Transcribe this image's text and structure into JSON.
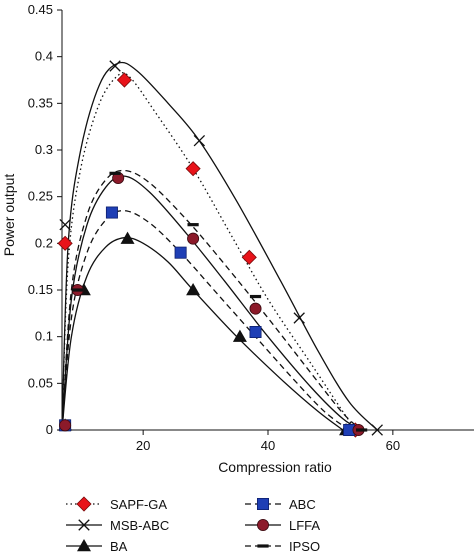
{
  "chart_data": {
    "type": "line",
    "xlabel": "Compression ratio",
    "ylabel": "Power output",
    "xlim": [
      7,
      73
    ],
    "ylim": [
      0,
      0.45
    ],
    "x_ticks": [
      20,
      40,
      60
    ],
    "y_ticks": [
      0,
      0.05,
      0.1,
      0.15,
      0.2,
      0.25,
      0.3,
      0.35,
      0.4,
      0.45
    ],
    "x_tick_labels": [
      "20",
      "40",
      "60"
    ],
    "y_tick_labels": [
      "0",
      "0.05",
      "0.1",
      "0.15",
      "0.2",
      "0.25",
      "0.3",
      "0.35",
      "0.4",
      "0.45"
    ],
    "grid": false,
    "legend_position": "bottom",
    "series": [
      {
        "name": "SAPF-GA",
        "marker": "diamond",
        "color": "#e8131a",
        "line_style": "dotted",
        "points": [
          [
            7.5,
            0.2
          ],
          [
            17,
            0.375
          ],
          [
            28,
            0.28
          ],
          [
            37,
            0.185
          ],
          [
            54,
            0.0
          ]
        ],
        "curve": [
          [
            7,
            0.0
          ],
          [
            8,
            0.18
          ],
          [
            10,
            0.28
          ],
          [
            13,
            0.35
          ],
          [
            16,
            0.38
          ],
          [
            18,
            0.377
          ],
          [
            22,
            0.34
          ],
          [
            28,
            0.28
          ],
          [
            34,
            0.21
          ],
          [
            40,
            0.14
          ],
          [
            47,
            0.07
          ],
          [
            53,
            0.01
          ],
          [
            54.5,
            0.0
          ]
        ]
      },
      {
        "name": "MSB-ABC",
        "marker": "x",
        "color": "#111111",
        "line_style": "solid",
        "points": [
          [
            7.5,
            0.22
          ],
          [
            15.5,
            0.39
          ],
          [
            29,
            0.31
          ],
          [
            45,
            0.12
          ],
          [
            57.5,
            0.0
          ]
        ],
        "curve": [
          [
            7,
            0.0
          ],
          [
            8,
            0.2
          ],
          [
            10,
            0.3
          ],
          [
            13,
            0.37
          ],
          [
            16,
            0.393
          ],
          [
            19,
            0.385
          ],
          [
            24,
            0.35
          ],
          [
            29,
            0.31
          ],
          [
            35,
            0.245
          ],
          [
            42,
            0.16
          ],
          [
            48,
            0.085
          ],
          [
            53,
            0.03
          ],
          [
            57.5,
            0.0
          ]
        ]
      },
      {
        "name": "BA",
        "marker": "triangle",
        "color": "#111111",
        "line_style": "solid",
        "points": [
          [
            7.5,
            0.005
          ],
          [
            10.5,
            0.15
          ],
          [
            17.5,
            0.205
          ],
          [
            28,
            0.15
          ],
          [
            35.5,
            0.1
          ],
          [
            52.5,
            0.0
          ]
        ],
        "curve": [
          [
            7,
            0.0
          ],
          [
            8.5,
            0.1
          ],
          [
            11,
            0.165
          ],
          [
            14,
            0.196
          ],
          [
            17,
            0.206
          ],
          [
            20,
            0.2
          ],
          [
            24,
            0.18
          ],
          [
            28,
            0.15
          ],
          [
            35,
            0.1
          ],
          [
            42,
            0.055
          ],
          [
            48,
            0.02
          ],
          [
            52,
            0.0
          ]
        ]
      },
      {
        "name": "ABC",
        "marker": "square",
        "color": "#1f3fb5",
        "line_style": "dashed",
        "points": [
          [
            7.5,
            0.005
          ],
          [
            15,
            0.233
          ],
          [
            26,
            0.19
          ],
          [
            38,
            0.105
          ],
          [
            53,
            0.0
          ]
        ],
        "curve": [
          [
            7,
            0.0
          ],
          [
            8.5,
            0.12
          ],
          [
            11,
            0.19
          ],
          [
            14,
            0.225
          ],
          [
            17,
            0.235
          ],
          [
            21,
            0.222
          ],
          [
            26,
            0.19
          ],
          [
            32,
            0.145
          ],
          [
            38,
            0.1
          ],
          [
            44,
            0.055
          ],
          [
            49,
            0.02
          ],
          [
            53,
            0.0
          ]
        ]
      },
      {
        "name": "LFFA",
        "marker": "circle",
        "color": "#8c1a2a",
        "line_style": "solid",
        "points": [
          [
            7.5,
            0.005
          ],
          [
            9.5,
            0.15
          ],
          [
            16,
            0.27
          ],
          [
            28,
            0.205
          ],
          [
            38,
            0.13
          ],
          [
            54.5,
            0.0
          ]
        ],
        "curve": [
          [
            7,
            0.0
          ],
          [
            8.5,
            0.14
          ],
          [
            11,
            0.22
          ],
          [
            14,
            0.26
          ],
          [
            17,
            0.272
          ],
          [
            21,
            0.255
          ],
          [
            27,
            0.21
          ],
          [
            33,
            0.16
          ],
          [
            40,
            0.1
          ],
          [
            47,
            0.045
          ],
          [
            52,
            0.012
          ],
          [
            55,
            0.0
          ]
        ]
      },
      {
        "name": "IPSO",
        "marker": "dash",
        "color": "#111111",
        "line_style": "dashed",
        "points": [
          [
            9.5,
            0.15
          ],
          [
            15.5,
            0.275
          ],
          [
            28,
            0.22
          ],
          [
            38,
            0.143
          ],
          [
            55,
            0.0
          ]
        ],
        "curve": [
          [
            7,
            0.0
          ],
          [
            8.5,
            0.15
          ],
          [
            11,
            0.23
          ],
          [
            14,
            0.268
          ],
          [
            17,
            0.278
          ],
          [
            21,
            0.265
          ],
          [
            27,
            0.225
          ],
          [
            33,
            0.178
          ],
          [
            40,
            0.12
          ],
          [
            47,
            0.06
          ],
          [
            52,
            0.018
          ],
          [
            55,
            0.0
          ]
        ]
      }
    ]
  }
}
